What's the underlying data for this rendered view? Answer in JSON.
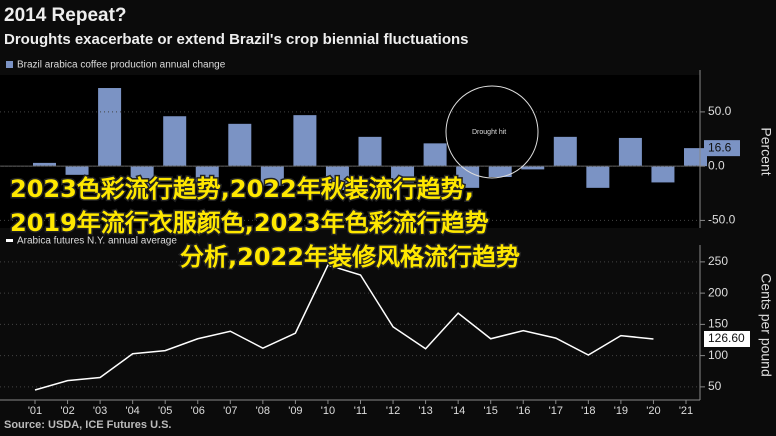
{
  "chart_data": [
    {
      "type": "bar",
      "title": "2014 Repeat?",
      "subtitle": "Droughts exacerbate or extend Brazil's crop biennial fluctuations",
      "y_label": "Percent",
      "annotation": "Drought hit",
      "series": [
        {
          "name": "Brazil arabica coffee production annual change",
          "color": "#7b93c4",
          "values": [
            3,
            -8,
            72,
            -20,
            46,
            -15,
            39,
            -18,
            47,
            -22,
            27,
            -15,
            21,
            -20,
            -10,
            -3,
            27,
            -20,
            26,
            -15,
            16.6
          ]
        }
      ],
      "ylim": [
        -57,
        84
      ],
      "yticks": [
        {
          "value": -50,
          "label": "-50.0"
        },
        {
          "value": 0,
          "label": "0.0"
        },
        {
          "value": 50,
          "label": "50.0"
        }
      ],
      "grid": true
    },
    {
      "type": "line",
      "y_label": "Cents per pound",
      "categories": [
        "'01",
        "'02",
        "'03",
        "'04",
        "'05",
        "'06",
        "'07",
        "'08",
        "'09",
        "'10",
        "'11",
        "'12",
        "'13",
        "'14",
        "'15",
        "'16",
        "'17",
        "'18",
        "'19",
        "'20",
        "'21"
      ],
      "series": [
        {
          "name": "Arabica futures N.Y. annual average",
          "color": "#ffffff",
          "values": [
            45,
            60,
            65,
            103,
            108,
            127,
            139,
            112,
            136,
            245,
            229,
            146,
            111,
            168,
            127,
            140,
            128,
            101,
            132,
            126.6,
            null
          ],
          "value_labels": [
            null,
            null,
            null,
            null,
            null,
            null,
            null,
            null,
            null,
            null,
            null,
            null,
            null,
            null,
            null,
            null,
            null,
            null,
            null,
            "126.60",
            null
          ]
        }
      ],
      "ylim": [
        29,
        269
      ],
      "yticks": [
        50,
        100,
        150,
        200,
        250
      ],
      "grid": true
    }
  ],
  "source": "Source: USDA, ICE Futures U.S.",
  "overlay_text": [
    "2023色彩流行趋势,2022年秋装流行趋势,",
    "2019年流行衣服颜色,2023年色彩流行趋势",
    "分析,2022年装修风格流行趋势"
  ]
}
